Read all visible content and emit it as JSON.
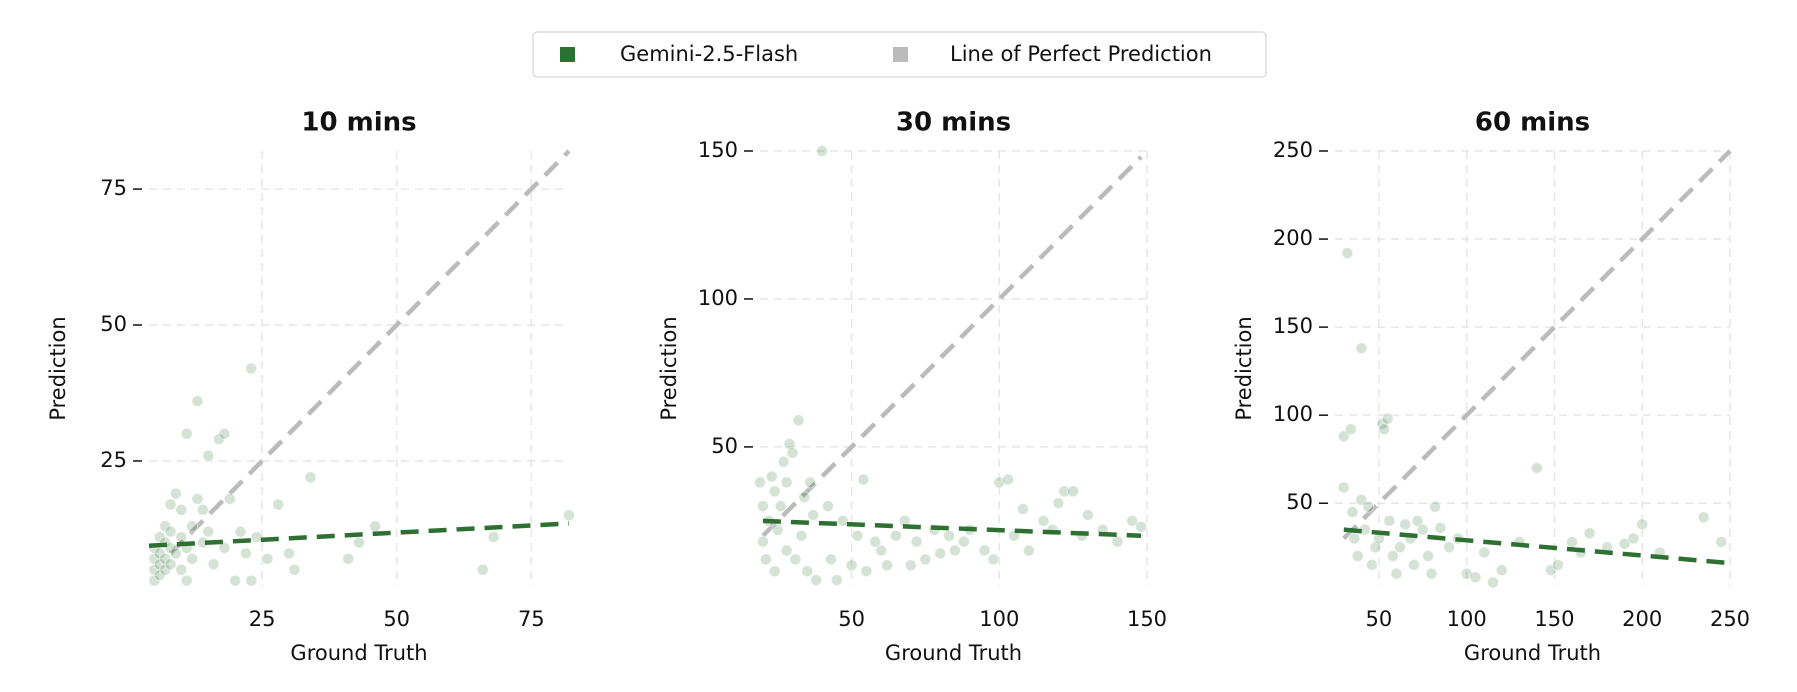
{
  "legend": "upper center",
  "chart_data": [
    {
      "type": "scatter",
      "title": "10 mins",
      "xlabel": "Ground Truth",
      "ylabel": "Prediction",
      "xlim": [
        4,
        82
      ],
      "ylim": [
        2,
        82
      ],
      "xticks": [
        25,
        50,
        75
      ],
      "yticks": [
        25,
        50,
        75
      ],
      "grid": true,
      "series": [
        {
          "name": "Gemini-2.5-Flash",
          "color": "#2e7031",
          "x": [
            5,
            5,
            5,
            5,
            6,
            6,
            6,
            6,
            7,
            7,
            7,
            7,
            8,
            8,
            8,
            8,
            9,
            9,
            10,
            10,
            10,
            11,
            11,
            11,
            12,
            12,
            13,
            13,
            14,
            14,
            15,
            15,
            16,
            17,
            18,
            18,
            19,
            20,
            21,
            22,
            23,
            23,
            24,
            26,
            28,
            30,
            31,
            34,
            41,
            43,
            46,
            66,
            68,
            82
          ],
          "values": [
            3,
            5,
            7,
            9,
            4,
            6,
            8,
            11,
            5,
            7,
            10,
            13,
            6,
            9,
            12,
            17,
            8,
            19,
            5,
            11,
            16,
            3,
            9,
            30,
            7,
            13,
            18,
            36,
            10,
            16,
            26,
            12,
            6,
            29,
            30,
            9,
            18,
            3,
            12,
            8,
            42,
            3,
            11,
            7,
            17,
            8,
            5,
            22,
            7,
            10,
            13,
            5,
            11,
            15
          ],
          "fit": {
            "x": [
              4,
              82
            ],
            "values": [
              9.4,
              13.5
            ]
          }
        },
        {
          "name": "Line of Perfect Prediction",
          "color": "#bbbbbb",
          "x": [
            8,
            82
          ],
          "values": [
            8,
            82
          ]
        }
      ]
    },
    {
      "type": "scatter",
      "title": "30 mins",
      "xlabel": "Ground Truth",
      "ylabel": "Prediction",
      "xlim": [
        19,
        150
      ],
      "ylim": [
        3,
        150
      ],
      "xticks": [
        50,
        100,
        150
      ],
      "yticks": [
        50,
        100,
        150
      ],
      "grid": true,
      "series": [
        {
          "name": "Gemini-2.5-Flash",
          "color": "#2e7031",
          "x": [
            19,
            20,
            20,
            21,
            22,
            23,
            24,
            24,
            25,
            26,
            27,
            28,
            28,
            29,
            30,
            31,
            32,
            33,
            34,
            35,
            36,
            37,
            38,
            40,
            42,
            43,
            45,
            47,
            50,
            52,
            54,
            55,
            58,
            60,
            62,
            65,
            68,
            70,
            72,
            75,
            78,
            80,
            83,
            85,
            88,
            90,
            95,
            98,
            100,
            103,
            105,
            108,
            110,
            115,
            118,
            120,
            122,
            125,
            128,
            130,
            135,
            140,
            145,
            148
          ],
          "values": [
            38,
            30,
            18,
            12,
            25,
            40,
            35,
            8,
            22,
            30,
            45,
            15,
            38,
            51,
            48,
            12,
            59,
            20,
            33,
            8,
            38,
            27,
            5,
            150,
            30,
            12,
            5,
            25,
            10,
            20,
            39,
            8,
            18,
            15,
            10,
            20,
            25,
            10,
            18,
            12,
            22,
            14,
            20,
            15,
            18,
            22,
            15,
            12,
            38,
            39,
            20,
            29,
            15,
            25,
            22,
            31,
            35,
            35,
            20,
            27,
            22,
            18,
            25,
            23
          ],
          "fit": {
            "x": [
              20,
              148
            ],
            "values": [
              25,
              20
            ]
          }
        },
        {
          "name": "Line of Perfect Prediction",
          "color": "#bbbbbb",
          "x": [
            20,
            148
          ],
          "values": [
            20,
            148
          ]
        }
      ]
    },
    {
      "type": "scatter",
      "title": "60 mins",
      "xlabel": "Ground Truth",
      "ylabel": "Prediction",
      "xlim": [
        25,
        250
      ],
      "ylim": [
        3,
        250
      ],
      "xticks": [
        50,
        100,
        150,
        200,
        250
      ],
      "yticks": [
        50,
        100,
        150,
        200,
        250
      ],
      "grid": true,
      "series": [
        {
          "name": "Gemini-2.5-Flash",
          "color": "#2e7031",
          "x": [
            30,
            30,
            32,
            34,
            35,
            36,
            38,
            40,
            40,
            42,
            44,
            46,
            48,
            50,
            52,
            53,
            55,
            56,
            58,
            60,
            62,
            65,
            68,
            70,
            72,
            75,
            78,
            80,
            82,
            85,
            90,
            95,
            100,
            105,
            110,
            115,
            120,
            130,
            140,
            148,
            152,
            160,
            165,
            170,
            180,
            190,
            195,
            200,
            210,
            235,
            245
          ],
          "values": [
            88,
            59,
            192,
            92,
            45,
            30,
            20,
            138,
            52,
            35,
            48,
            15,
            25,
            30,
            95,
            92,
            98,
            40,
            20,
            10,
            25,
            38,
            30,
            15,
            40,
            35,
            20,
            10,
            48,
            36,
            25,
            30,
            10,
            8,
            22,
            5,
            12,
            28,
            70,
            12,
            15,
            28,
            22,
            33,
            25,
            27,
            30,
            38,
            22,
            42,
            28
          ],
          "fit": {
            "x": [
              30,
              250
            ],
            "values": [
              35,
              16
            ]
          }
        },
        {
          "name": "Line of Perfect Prediction",
          "color": "#bbbbbb",
          "x": [
            30,
            250
          ],
          "values": [
            30,
            250
          ]
        }
      ]
    }
  ]
}
